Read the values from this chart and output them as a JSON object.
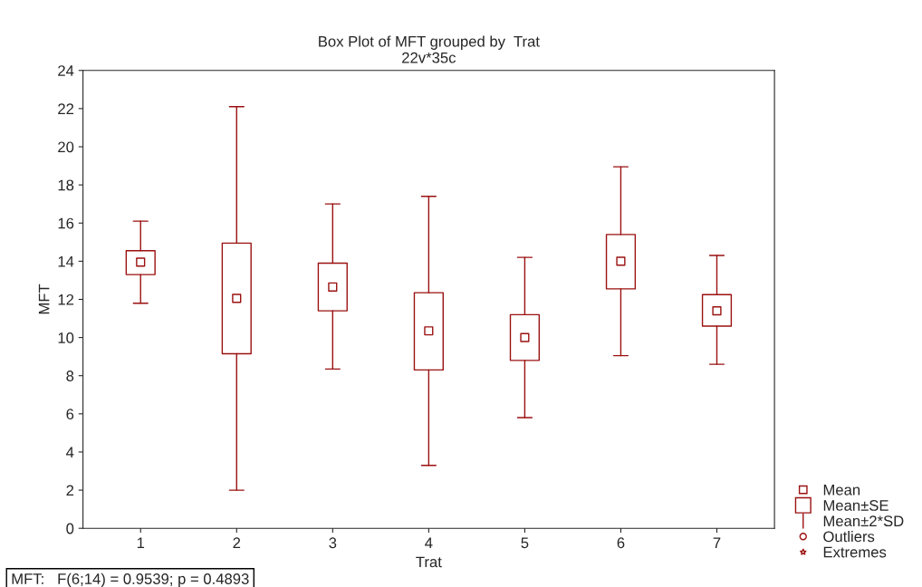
{
  "chart_data": {
    "type": "box",
    "title": "Box Plot of MFT grouped by  Trat",
    "subtitle": "22v*35c",
    "xlabel": "Trat",
    "ylabel": "MFT",
    "categories": [
      "1",
      "2",
      "3",
      "4",
      "5",
      "6",
      "7"
    ],
    "series": [
      {
        "name": "Mean",
        "color": "#9b1010",
        "marker": "square",
        "boxes": [
          {
            "low": 11.8,
            "q1": 13.3,
            "median": 13.95,
            "q3": 14.55,
            "high": 16.1
          },
          {
            "low": 2.0,
            "q1": 9.15,
            "median": 12.05,
            "q3": 14.95,
            "high": 22.1
          },
          {
            "low": 8.35,
            "q1": 11.4,
            "median": 12.65,
            "q3": 13.9,
            "high": 17.0
          },
          {
            "low": 3.3,
            "q1": 8.3,
            "median": 10.35,
            "q3": 12.35,
            "high": 17.4
          },
          {
            "low": 5.8,
            "q1": 8.8,
            "median": 10.0,
            "q3": 11.2,
            "high": 14.2
          },
          {
            "low": 9.05,
            "q1": 12.55,
            "median": 14.0,
            "q3": 15.4,
            "high": 18.95
          },
          {
            "low": 8.6,
            "q1": 10.6,
            "median": 11.4,
            "q3": 12.25,
            "high": 14.3
          }
        ]
      },
      {
        "name": "Mean±SE",
        "color": "#9b1010",
        "marker": "square",
        "values": [
          null,
          null,
          null,
          null,
          null,
          null,
          null
        ]
      },
      {
        "name": "Mean±2*SD",
        "color": "#9b1010",
        "marker": "none",
        "values": [
          null,
          null,
          null,
          null,
          null,
          null,
          null
        ]
      },
      {
        "name": "Outliers",
        "color": "#9b1010",
        "marker": "circle",
        "values": [
          null,
          null,
          null,
          null,
          null,
          null,
          null
        ]
      },
      {
        "name": "Extremes",
        "color": "#9b1010",
        "marker": "star",
        "values": [
          null,
          null,
          null,
          null,
          null,
          null,
          null
        ]
      }
    ],
    "ylim": [
      0,
      24
    ],
    "yticks": [
      0,
      2,
      4,
      6,
      8,
      10,
      12,
      14,
      16,
      18,
      20,
      22,
      24
    ],
    "grid": false,
    "legend": "bottom right",
    "annotations": [
      "MFT:   F(6;14) = 0.9539; p = 0.4893"
    ]
  }
}
